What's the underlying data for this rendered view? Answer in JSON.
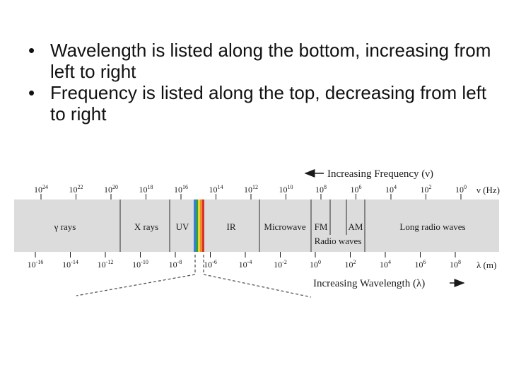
{
  "bullets": [
    {
      "marker": "•",
      "text": "Wavelength is listed along the bottom, increasing from left to right"
    },
    {
      "marker": "•",
      "text": "Frequency is listed along the top, decreasing from left to right"
    }
  ],
  "spectrum": {
    "frequency_arrow_label": "Increasing Frequency (ν)",
    "frequency_axis_label": "ν (Hz)",
    "wavelength_arrow_label": "Increasing Wavelength (λ)",
    "wavelength_axis_label": "λ (m)",
    "frequency_ticks": [
      {
        "base": "10",
        "exp": "24"
      },
      {
        "base": "10",
        "exp": "22"
      },
      {
        "base": "10",
        "exp": "20"
      },
      {
        "base": "10",
        "exp": "18"
      },
      {
        "base": "10",
        "exp": "16"
      },
      {
        "base": "10",
        "exp": "14"
      },
      {
        "base": "10",
        "exp": "12"
      },
      {
        "base": "10",
        "exp": "10"
      },
      {
        "base": "10",
        "exp": "8"
      },
      {
        "base": "10",
        "exp": "6"
      },
      {
        "base": "10",
        "exp": "4"
      },
      {
        "base": "10",
        "exp": "2"
      },
      {
        "base": "10",
        "exp": "0"
      }
    ],
    "wavelength_ticks": [
      {
        "base": "10",
        "exp": "-16"
      },
      {
        "base": "10",
        "exp": "-14"
      },
      {
        "base": "10",
        "exp": "-12"
      },
      {
        "base": "10",
        "exp": "-10"
      },
      {
        "base": "10",
        "exp": "-8"
      },
      {
        "base": "10",
        "exp": "-6"
      },
      {
        "base": "10",
        "exp": "-4"
      },
      {
        "base": "10",
        "exp": "-2"
      },
      {
        "base": "10",
        "exp": "0"
      },
      {
        "base": "10",
        "exp": "2"
      },
      {
        "base": "10",
        "exp": "4"
      },
      {
        "base": "10",
        "exp": "6"
      },
      {
        "base": "10",
        "exp": "8"
      }
    ],
    "regions": [
      "γ rays",
      "X rays",
      "UV",
      "IR",
      "Microwave",
      "FM",
      "AM",
      "Long radio waves"
    ],
    "radio_waves_label": "Radio waves",
    "band_color": "#dcdcdc",
    "visible_colors": [
      "#3a7fd0",
      "#2f9e4a",
      "#e8d23a",
      "#f08c2a",
      "#d8322a"
    ]
  }
}
